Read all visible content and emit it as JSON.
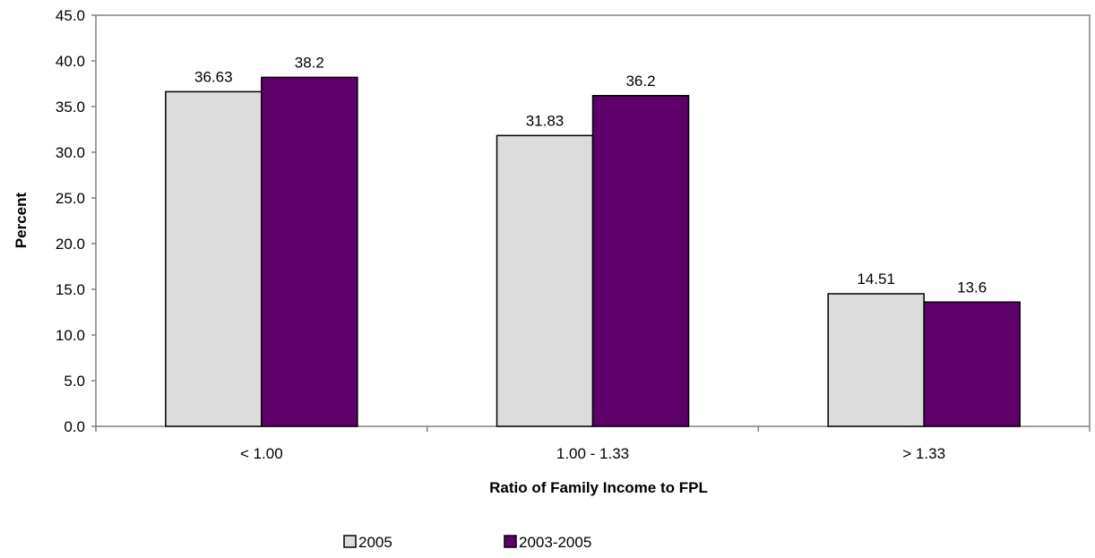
{
  "chart_data": {
    "type": "bar",
    "title": "",
    "xlabel": "Ratio of Family Income to FPL",
    "ylabel": "Percent",
    "categories": [
      "< 1.00",
      "1.00 - 1.33",
      "> 1.33"
    ],
    "series": [
      {
        "name": "2005",
        "values": [
          36.63,
          31.83,
          14.51
        ],
        "labels": [
          "36.63",
          "31.83",
          "14.51"
        ],
        "color": "#dcdcdc"
      },
      {
        "name": "2003-2005",
        "values": [
          38.2,
          36.2,
          13.6
        ],
        "labels": [
          "38.2",
          "36.2",
          "13.6"
        ],
        "color": "#5f006a"
      }
    ],
    "ylim": [
      0,
      45
    ],
    "ytick_step": 5,
    "yticks": [
      "0.0",
      "5.0",
      "10.0",
      "15.0",
      "20.0",
      "25.0",
      "30.0",
      "35.0",
      "40.0",
      "45.0"
    ],
    "grid": false,
    "legend_position": "bottom-center"
  }
}
